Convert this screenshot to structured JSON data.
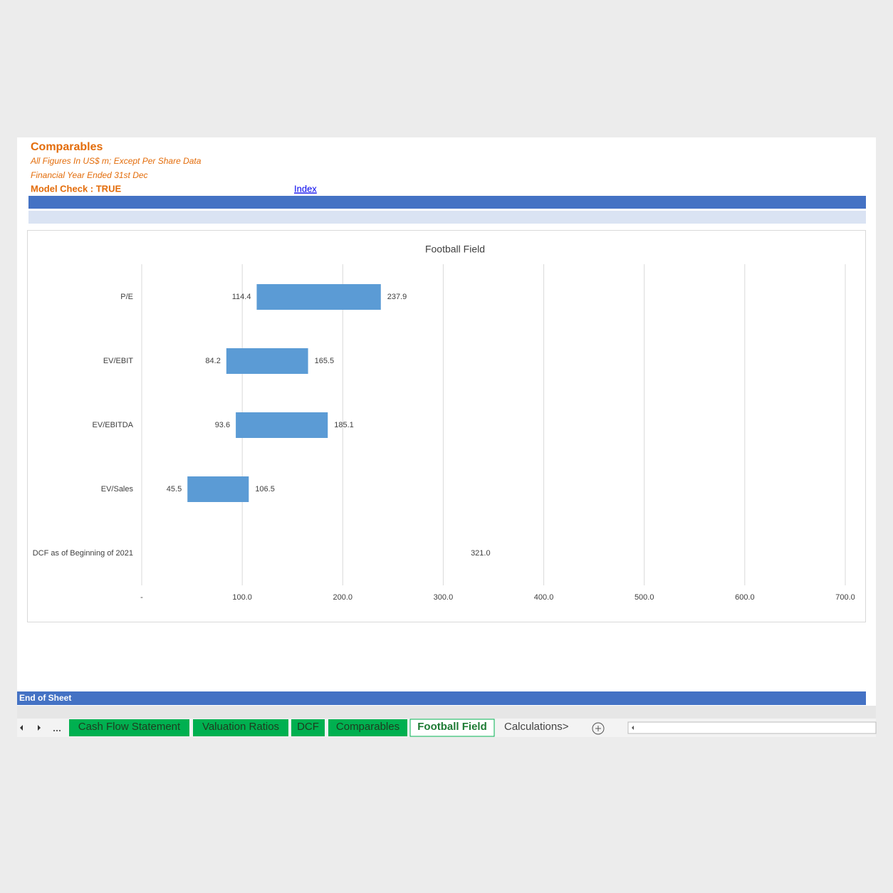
{
  "header": {
    "title": "Comparables",
    "subtitle": "All Figures In US$ m; Except Per Share Data",
    "subtitle2": "Financial Year Ended 31st Dec",
    "model_check": "Model Check : TRUE",
    "link": "Index"
  },
  "footer": {
    "end": "End of Sheet"
  },
  "tabs": {
    "items": [
      "Cash Flow Statement",
      "Valuation Ratios",
      "DCF",
      "Comparables",
      "Football Field",
      "Calculations>"
    ],
    "active": 4
  },
  "chart_data": {
    "type": "floating-bar",
    "title": "Football Field",
    "categories": [
      "P/E",
      "EV/EBIT",
      "EV/EBITDA",
      "EV/Sales",
      "DCF  as of Beginning of 2021"
    ],
    "series": [
      {
        "color": "#5b9bd5",
        "values": [
          114.4,
          84.2,
          93.6,
          45.5,
          null
        ]
      },
      {
        "color": "#5b9bd5",
        "values": [
          237.9,
          165.5,
          185.1,
          106.5,
          321
        ],
        "value_labels": [
          "237.9",
          "165.5",
          "185.1",
          "106.5",
          "321.0"
        ]
      }
    ],
    "xlim": [
      0,
      700
    ],
    "xticks": [
      {
        "value": 0,
        "label": "-"
      },
      {
        "value": 100,
        "label": "100.0"
      },
      {
        "value": 200,
        "label": "200.0"
      },
      {
        "value": 300,
        "label": "300.0"
      },
      {
        "value": 400,
        "label": "400.0"
      },
      {
        "value": 500,
        "label": "500.0"
      },
      {
        "value": 600,
        "label": "600.0"
      },
      {
        "value": 700,
        "label": "700.0"
      }
    ],
    "grid": true
  }
}
